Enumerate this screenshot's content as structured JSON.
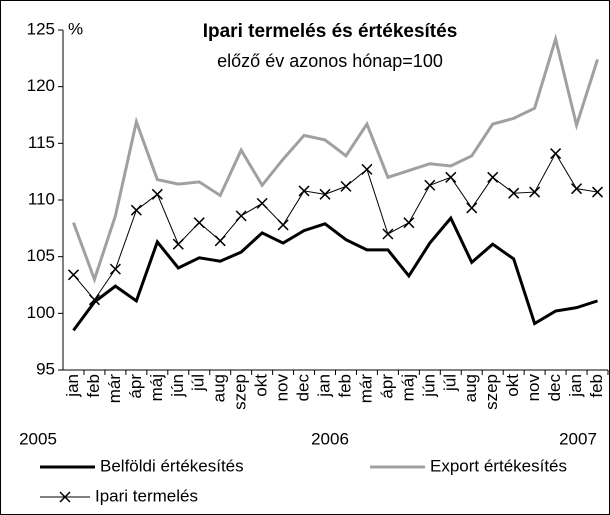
{
  "chart_data": {
    "type": "line",
    "title": "Ipari termelés és értékesítés",
    "subtitle": "előző év azonos hónap=100",
    "y_unit": "%",
    "categories": [
      "jan",
      "feb",
      "már",
      "ápr",
      "máj",
      "jún",
      "júl",
      "aug",
      "szep",
      "okt",
      "nov",
      "dec",
      "jan",
      "feb",
      "már",
      "ápr",
      "máj",
      "jún",
      "júl",
      "aug",
      "szep",
      "okt",
      "nov",
      "dec",
      "jan",
      "feb"
    ],
    "year_labels": [
      "2005",
      "2006",
      "2007"
    ],
    "ylim": [
      95,
      125
    ],
    "yticks": [
      95,
      100,
      105,
      110,
      115,
      120,
      125
    ],
    "series": [
      {
        "name": "Belföldi értékesítés",
        "color": "#000000",
        "values": [
          98.5,
          101,
          102.4,
          101.1,
          106.3,
          104,
          104.9,
          104.6,
          105.4,
          107.1,
          106.2,
          107.3,
          107.9,
          106.5,
          105.6,
          105.6,
          103.3,
          106.2,
          108.4,
          104.5,
          106.1,
          104.8,
          99.1,
          100.2,
          100.5,
          101.1
        ]
      },
      {
        "name": "Export értékesítés",
        "color": "#a0a0a0",
        "values": [
          108,
          103,
          108.6,
          116.9,
          111.8,
          111.4,
          111.6,
          110.4,
          114.4,
          111.3,
          113.6,
          115.7,
          115.3,
          113.9,
          116.7,
          112,
          112.6,
          113.2,
          113,
          113.9,
          116.7,
          117.2,
          118.1,
          124.2,
          116.6,
          122.4
        ]
      },
      {
        "name": "Ipari termelés",
        "color": "#000000",
        "values": [
          103.4,
          101.2,
          103.9,
          109.1,
          110.5,
          106.1,
          108,
          106.4,
          108.6,
          109.7,
          107.8,
          110.8,
          110.5,
          111.2,
          112.7,
          107,
          108,
          111.3,
          112,
          109.3,
          112,
          110.6,
          110.7,
          114.1,
          111,
          110.7
        ]
      }
    ]
  }
}
